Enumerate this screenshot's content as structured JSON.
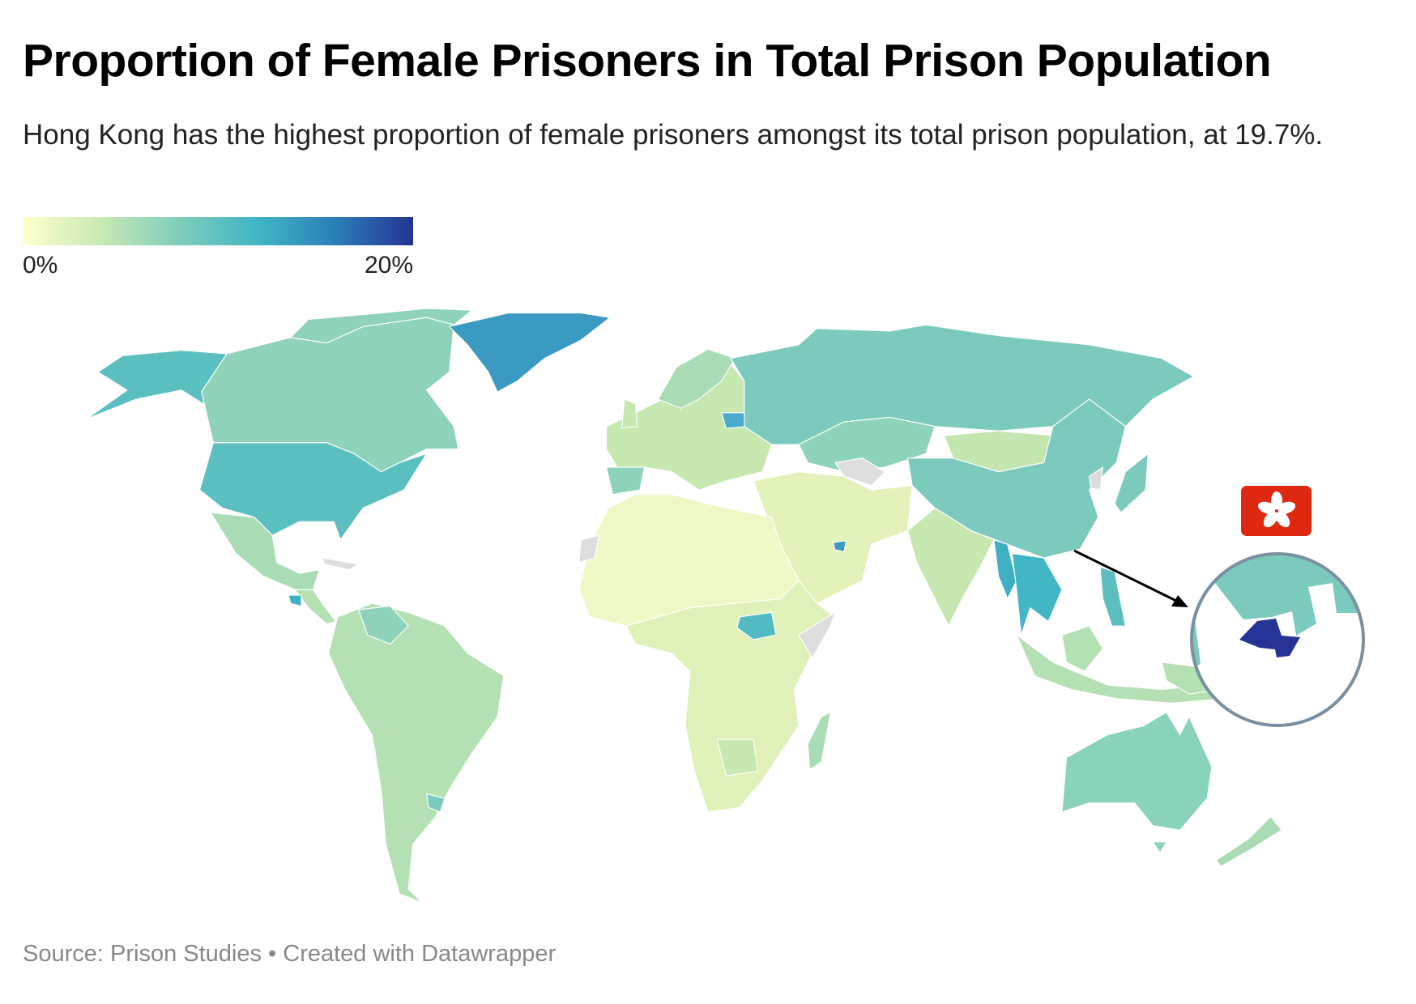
{
  "header": {
    "title": "Proportion of Female Prisoners in Total Prison Population",
    "subtitle": "Hong Kong has the highest proportion of female prisoners amongst its total prison population, at 19.7%."
  },
  "legend": {
    "min_label": "0%",
    "max_label": "20%",
    "range": [
      0,
      20
    ],
    "colors": [
      "#ffffcc",
      "#c7e9b4",
      "#7fcdbb",
      "#41b6c4",
      "#2c7fb8",
      "#253494"
    ]
  },
  "chart_data": {
    "type": "choropleth",
    "value_unit": "%",
    "scale_range": [
      0,
      20
    ],
    "highlight": {
      "region": "Hong Kong",
      "value": 19.7,
      "flag_icon": "hong-kong-flag-icon",
      "color": "#253494"
    },
    "no_data_color": "#dddddd"
  },
  "footer": {
    "source": "Source: Prison Studies • Created with Datawrapper"
  }
}
